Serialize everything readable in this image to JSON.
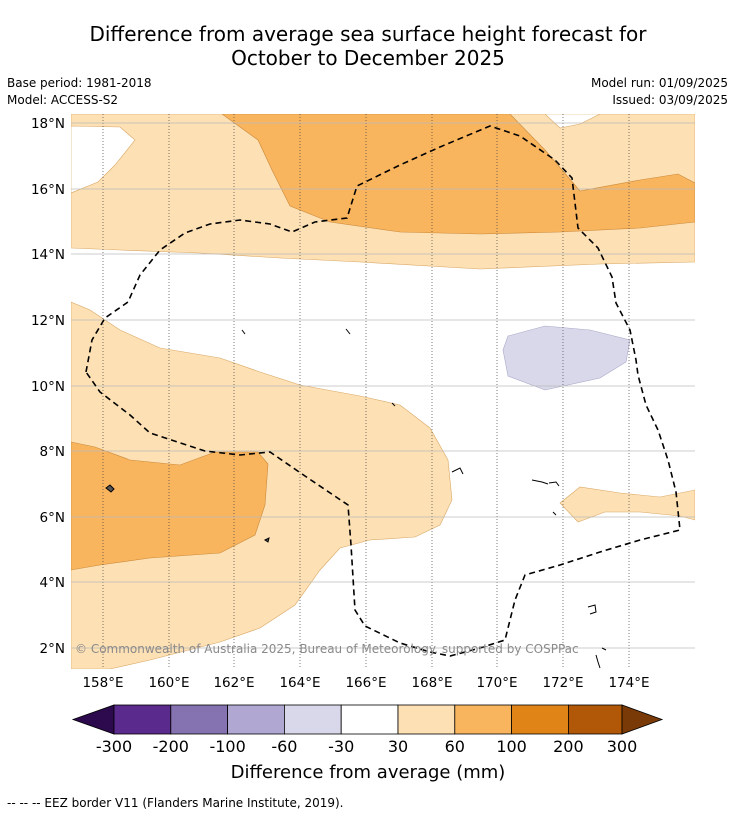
{
  "title_line1": "Difference from average sea surface height forecast for",
  "title_line2": "October to December 2025",
  "base_period": "Base period: 1981-2018",
  "model": "Model: ACCESS-S2",
  "model_run": "Model run: 01/09/2025",
  "issued": "Issued: 03/09/2025",
  "copyright": "© Commonwealth of Australia 2025, Bureau of Meteorology. supported by COSPPac",
  "footnote": "--  --  -- EEZ border V11 (Flanders Marine Institute, 2019).",
  "map": {
    "lon_ticks": [
      "158°E",
      "160°E",
      "162°E",
      "164°E",
      "166°E",
      "168°E",
      "170°E",
      "172°E",
      "174°E"
    ],
    "lat_ticks": [
      "18°N",
      "16°N",
      "14°N",
      "12°N",
      "10°N",
      "8°N",
      "6°N",
      "4°N",
      "2°N"
    ],
    "gridlines": true,
    "border_style": "dashed"
  },
  "colorbar": {
    "label": "Difference from average (mm)",
    "ticks": [
      "-300",
      "-200",
      "-100",
      "-60",
      "-30",
      "30",
      "60",
      "100",
      "200",
      "300"
    ],
    "colors": [
      "#2d0a4e",
      "#5a2a8c",
      "#8572b0",
      "#b0a8d2",
      "#d8d8ea",
      "#ffffff",
      "#fde0b4",
      "#f9b45e",
      "#e08418",
      "#b05808",
      "#7a3a08"
    ]
  }
}
